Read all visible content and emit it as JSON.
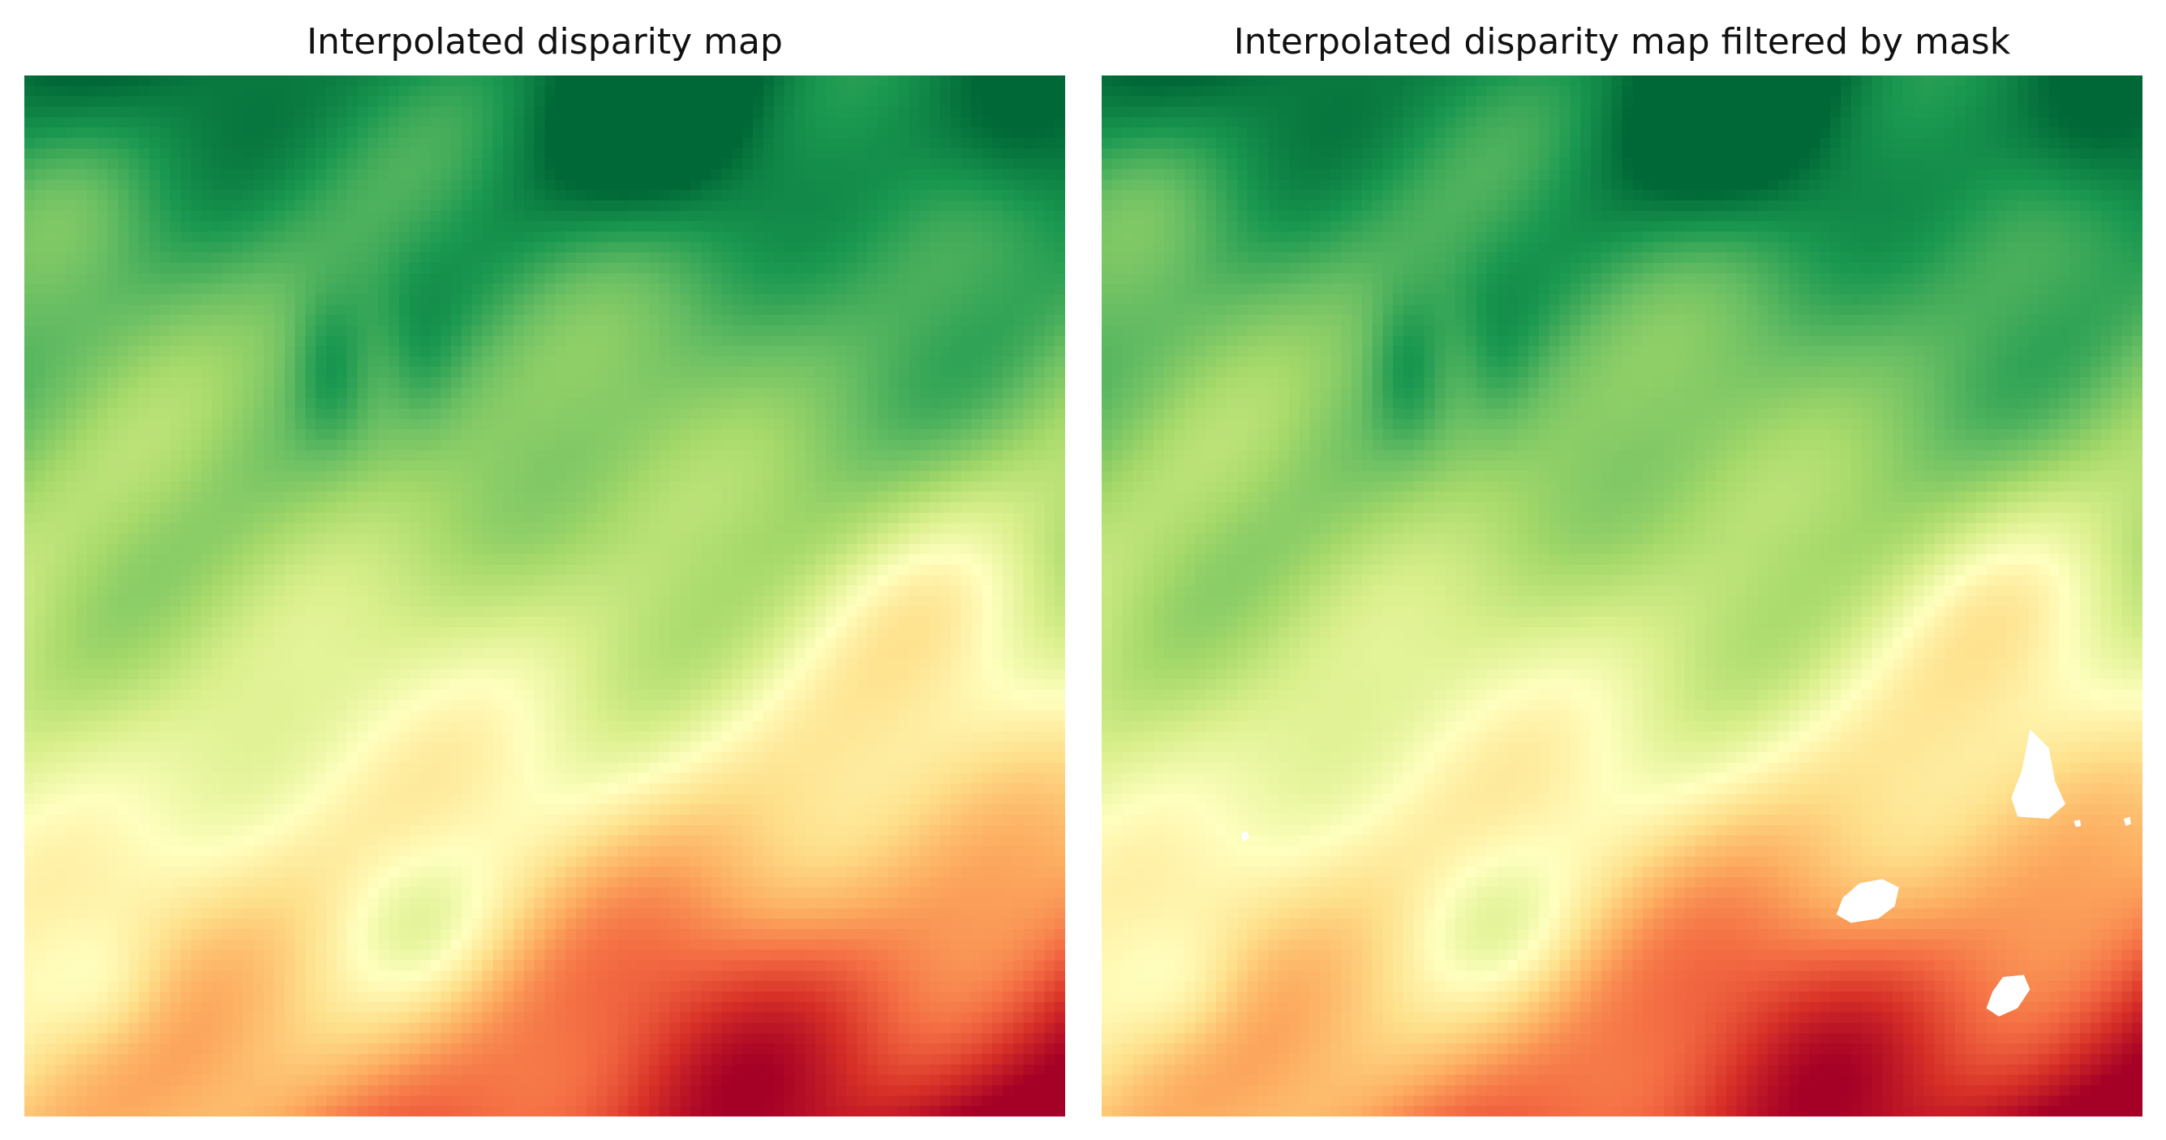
{
  "panels": [
    {
      "title": "Interpolated disparity map",
      "colormap": "RdYlGn",
      "mask_applied": false
    },
    {
      "title": "Interpolated disparity map filtered by mask",
      "colormap": "RdYlGn",
      "mask_applied": true,
      "masked_region_count": 6
    }
  ],
  "colors": {
    "background": "#ffffff",
    "masked": "#ffffff",
    "colormap_stops": [
      "#a50026",
      "#d73027",
      "#f46d43",
      "#fdae61",
      "#fee08b",
      "#ffffbf",
      "#d9ef8b",
      "#a6d96a",
      "#66bd63",
      "#1a9850",
      "#006837"
    ]
  }
}
